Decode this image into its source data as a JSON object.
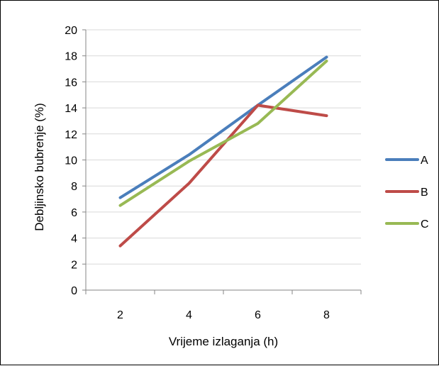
{
  "chart_data": {
    "type": "line",
    "title": "",
    "xlabel": "Vrijeme izlaganja (h)",
    "ylabel": "Debljinsko bubrenje (%)",
    "categories": [
      "2",
      "4",
      "6",
      "8"
    ],
    "x": [
      2,
      4,
      6,
      8
    ],
    "ylim": [
      0,
      20
    ],
    "yticks": [
      0,
      2,
      4,
      6,
      8,
      10,
      12,
      14,
      16,
      18,
      20
    ],
    "grid": "horizontal",
    "legend": "right",
    "series": [
      {
        "name": "A",
        "color": "#4a7ebb",
        "values": [
          7.1,
          10.4,
          14.2,
          17.9
        ]
      },
      {
        "name": "B",
        "color": "#be4b48",
        "values": [
          3.4,
          8.2,
          14.2,
          13.4
        ]
      },
      {
        "name": "C",
        "color": "#98b954",
        "values": [
          6.5,
          9.9,
          12.8,
          17.6
        ]
      }
    ]
  }
}
